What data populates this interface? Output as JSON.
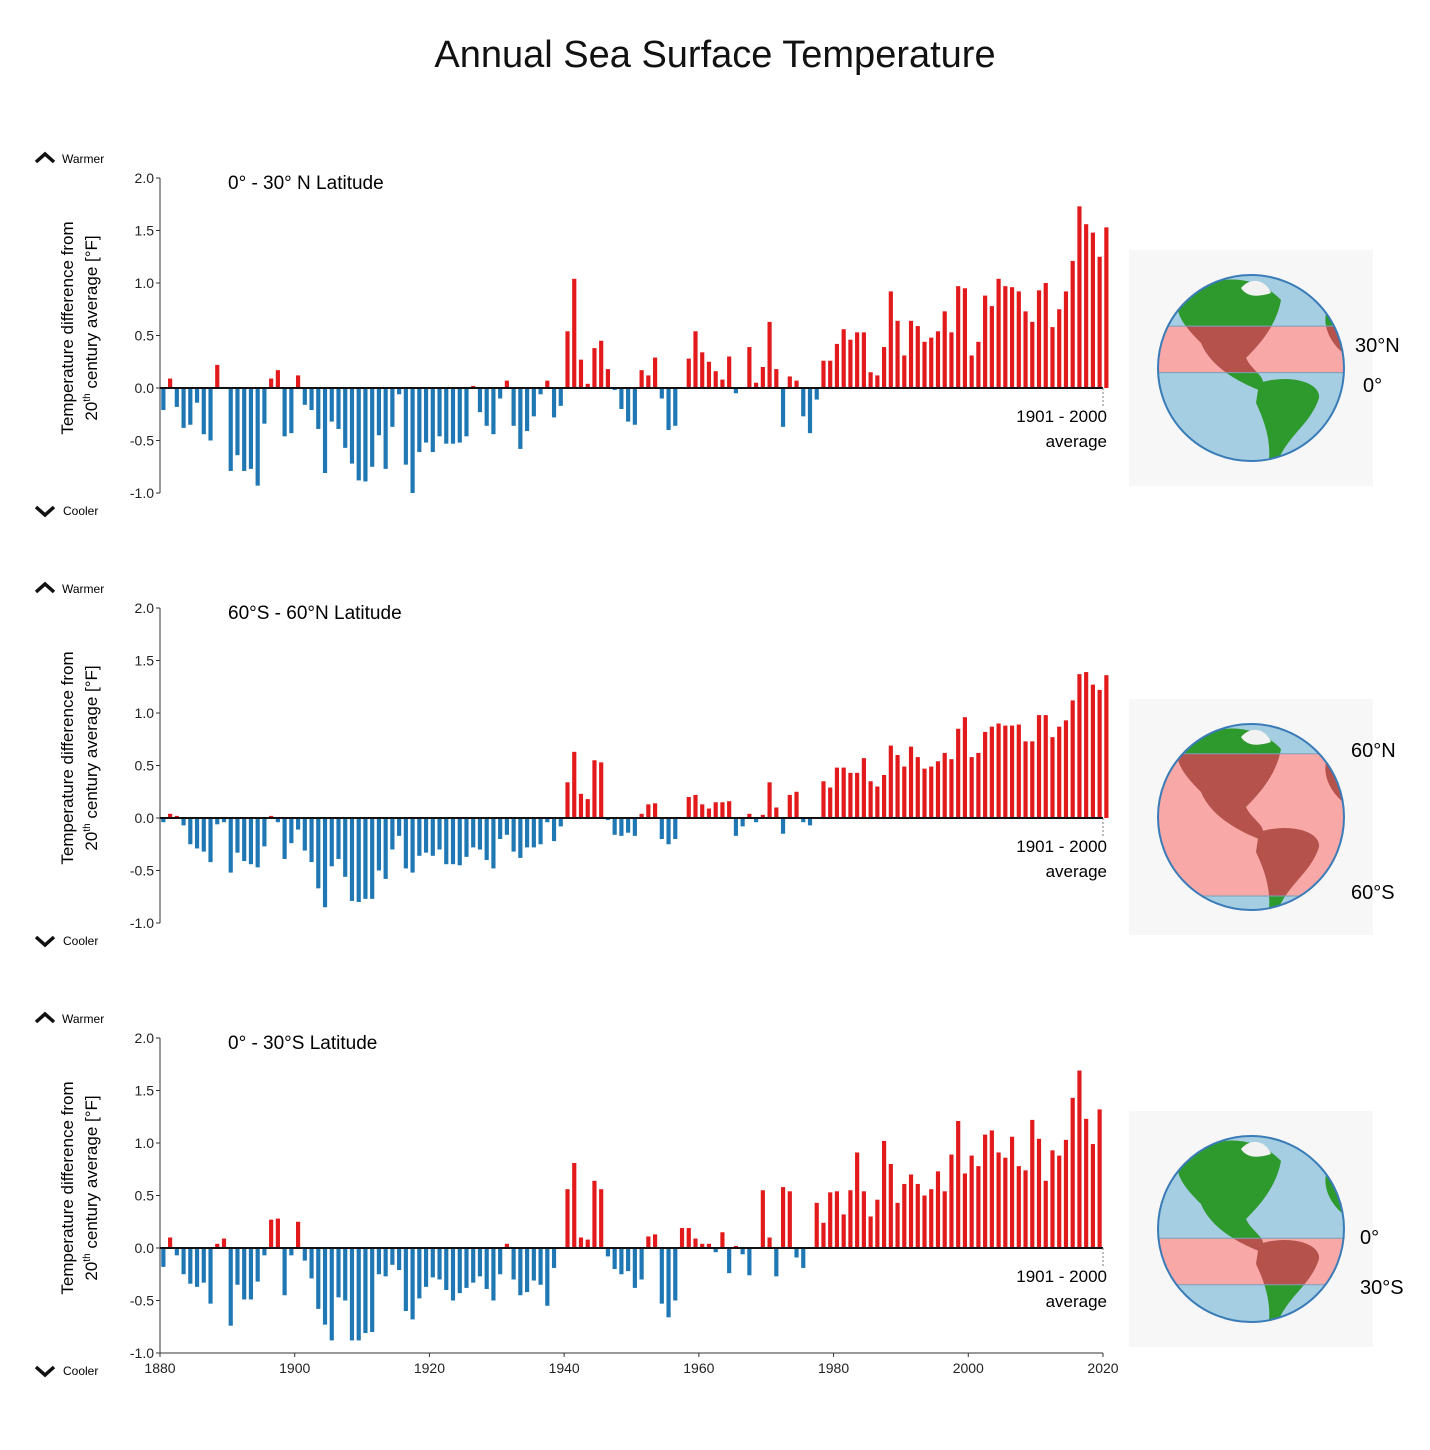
{
  "title": "Annual Sea Surface Temperature",
  "ylabel_line1": "Temperature difference from",
  "ylabel_line2_pre": "20",
  "ylabel_line2_sup": "th",
  "ylabel_line2_post": " century average [°F]",
  "warmer_label": "Warmer",
  "cooler_label": "Cooler",
  "avg_label_line1": "1901 - 2000",
  "avg_label_line2": "average",
  "colors": {
    "warm": "#e31a1c",
    "cool": "#1f78b4",
    "ocean": "#a6cee3",
    "land": "#2e9a2e",
    "band": "#f9a8a8",
    "band_land": "#b5524c"
  },
  "chart_data": [
    {
      "type": "bar",
      "title": "0° - 30° N Latitude",
      "globe_labels": [
        "30°N",
        "0°"
      ],
      "xlim": [
        1880,
        2020
      ],
      "ylim": [
        -1.0,
        2.0
      ],
      "yticks": [
        -1.0,
        -0.5,
        0.0,
        0.5,
        1.0,
        1.5,
        2.0
      ],
      "xticks": [
        1880,
        1900,
        1920,
        1940,
        1960,
        1980,
        2000,
        2020
      ],
      "x_start": 1880,
      "values": [
        -0.21,
        0.09,
        -0.18,
        -0.38,
        -0.35,
        -0.14,
        -0.44,
        -0.5,
        0.22,
        0.01,
        -0.79,
        -0.64,
        -0.79,
        -0.77,
        -0.93,
        -0.34,
        0.09,
        0.17,
        -0.46,
        -0.43,
        0.12,
        -0.16,
        -0.21,
        -0.39,
        -0.81,
        -0.32,
        -0.39,
        -0.57,
        -0.72,
        -0.88,
        -0.89,
        -0.75,
        -0.45,
        -0.77,
        -0.37,
        -0.06,
        -0.73,
        -1.0,
        -0.61,
        -0.52,
        -0.61,
        -0.46,
        -0.53,
        -0.53,
        -0.52,
        -0.46,
        0.02,
        -0.23,
        -0.36,
        -0.44,
        -0.1,
        0.07,
        -0.36,
        -0.58,
        -0.41,
        -0.27,
        -0.06,
        0.07,
        -0.28,
        -0.17,
        0.54,
        1.04,
        0.27,
        0.04,
        0.38,
        0.45,
        0.18,
        -0.02,
        -0.2,
        -0.32,
        -0.35,
        0.17,
        0.12,
        0.29,
        -0.1,
        -0.4,
        -0.36,
        0.0,
        0.28,
        0.54,
        0.34,
        0.25,
        0.16,
        0.08,
        0.3,
        -0.05,
        0.0,
        0.39,
        0.05,
        0.2,
        0.63,
        0.18,
        -0.37,
        0.11,
        0.07,
        -0.27,
        -0.43,
        -0.11,
        0.26,
        0.26,
        0.42,
        0.56,
        0.46,
        0.53,
        0.53,
        0.15,
        0.12,
        0.39,
        0.92,
        0.64,
        0.31,
        0.64,
        0.59,
        0.44,
        0.48,
        0.54,
        0.73,
        0.53,
        0.97,
        0.95,
        0.31,
        0.44,
        0.88,
        0.78,
        1.04,
        0.97,
        0.96,
        0.92,
        0.73,
        0.63,
        0.93,
        1.0,
        0.58,
        0.75,
        0.92,
        1.21,
        1.73,
        1.56,
        1.48,
        1.25,
        1.53
      ]
    },
    {
      "type": "bar",
      "title": "60°S - 60°N Latitude",
      "globe_labels": [
        "60°N",
        "60°S"
      ],
      "xlim": [
        1880,
        2020
      ],
      "ylim": [
        -1.0,
        2.0
      ],
      "yticks": [
        -1.0,
        -0.5,
        0.0,
        0.5,
        1.0,
        1.5,
        2.0
      ],
      "xticks": [
        1880,
        1900,
        1920,
        1940,
        1960,
        1980,
        2000,
        2020
      ],
      "x_start": 1880,
      "values": [
        -0.04,
        0.04,
        0.02,
        -0.07,
        -0.25,
        -0.29,
        -0.32,
        -0.42,
        -0.06,
        -0.04,
        -0.52,
        -0.33,
        -0.41,
        -0.44,
        -0.47,
        -0.27,
        0.02,
        -0.04,
        -0.39,
        -0.24,
        -0.11,
        -0.31,
        -0.42,
        -0.67,
        -0.85,
        -0.46,
        -0.39,
        -0.56,
        -0.79,
        -0.8,
        -0.77,
        -0.77,
        -0.5,
        -0.58,
        -0.3,
        -0.17,
        -0.48,
        -0.52,
        -0.36,
        -0.33,
        -0.36,
        -0.3,
        -0.44,
        -0.44,
        -0.45,
        -0.37,
        -0.28,
        -0.3,
        -0.4,
        -0.48,
        -0.2,
        -0.16,
        -0.32,
        -0.38,
        -0.28,
        -0.28,
        -0.25,
        -0.04,
        -0.22,
        -0.08,
        0.34,
        0.63,
        0.23,
        0.18,
        0.55,
        0.53,
        -0.02,
        -0.16,
        -0.17,
        -0.14,
        -0.17,
        0.04,
        0.13,
        0.14,
        -0.2,
        -0.25,
        -0.2,
        0.0,
        0.2,
        0.22,
        0.13,
        0.09,
        0.15,
        0.15,
        0.16,
        -0.17,
        -0.08,
        0.04,
        -0.04,
        0.03,
        0.34,
        0.1,
        -0.15,
        0.22,
        0.25,
        -0.04,
        -0.07,
        0.0,
        0.35,
        0.29,
        0.48,
        0.48,
        0.43,
        0.43,
        0.57,
        0.35,
        0.3,
        0.41,
        0.69,
        0.6,
        0.49,
        0.68,
        0.58,
        0.47,
        0.49,
        0.54,
        0.62,
        0.56,
        0.85,
        0.96,
        0.58,
        0.62,
        0.82,
        0.87,
        0.9,
        0.88,
        0.88,
        0.89,
        0.73,
        0.73,
        0.98,
        0.98,
        0.77,
        0.87,
        0.93,
        1.12,
        1.37,
        1.39,
        1.27,
        1.22,
        1.36
      ]
    },
    {
      "type": "bar",
      "title": "0° - 30°S Latitude",
      "globe_labels": [
        "0°",
        "30°S"
      ],
      "xlim": [
        1880,
        2020
      ],
      "ylim": [
        -1.0,
        2.0
      ],
      "yticks": [
        -1.0,
        -0.5,
        0.0,
        0.5,
        1.0,
        1.5,
        2.0
      ],
      "xticks": [
        1880,
        1900,
        1920,
        1940,
        1960,
        1980,
        2000,
        2020
      ],
      "x_start": 1880,
      "values": [
        -0.18,
        0.1,
        -0.07,
        -0.25,
        -0.34,
        -0.37,
        -0.33,
        -0.53,
        0.04,
        0.09,
        -0.74,
        -0.35,
        -0.49,
        -0.49,
        -0.32,
        -0.07,
        0.27,
        0.28,
        -0.45,
        -0.07,
        0.25,
        -0.12,
        -0.29,
        -0.58,
        -0.73,
        -0.88,
        -0.47,
        -0.5,
        -0.88,
        -0.88,
        -0.81,
        -0.8,
        -0.25,
        -0.27,
        -0.16,
        -0.21,
        -0.6,
        -0.68,
        -0.48,
        -0.37,
        -0.28,
        -0.3,
        -0.4,
        -0.5,
        -0.43,
        -0.38,
        -0.33,
        -0.27,
        -0.39,
        -0.5,
        -0.25,
        0.04,
        -0.3,
        -0.45,
        -0.42,
        -0.31,
        -0.35,
        -0.55,
        -0.19,
        0.0,
        0.56,
        0.81,
        0.1,
        0.08,
        0.64,
        0.56,
        -0.08,
        -0.2,
        -0.25,
        -0.22,
        -0.38,
        -0.3,
        0.11,
        0.13,
        -0.53,
        -0.66,
        -0.5,
        0.19,
        0.19,
        0.09,
        0.04,
        0.04,
        -0.04,
        0.15,
        -0.24,
        0.02,
        -0.06,
        -0.26,
        0.0,
        0.55,
        0.1,
        -0.27,
        0.58,
        0.54,
        -0.09,
        -0.19,
        0.0,
        0.43,
        0.24,
        0.53,
        0.54,
        0.32,
        0.55,
        0.91,
        0.54,
        0.3,
        0.46,
        1.02,
        0.8,
        0.43,
        0.61,
        0.7,
        0.61,
        0.5,
        0.56,
        0.73,
        0.54,
        0.89,
        1.21,
        0.71,
        0.88,
        0.78,
        1.08,
        1.12,
        0.91,
        0.86,
        1.06,
        0.78,
        0.74,
        1.22,
        1.04,
        0.64,
        0.93,
        0.88,
        1.03,
        1.43,
        1.69,
        1.23,
        0.99,
        1.32
      ]
    }
  ]
}
